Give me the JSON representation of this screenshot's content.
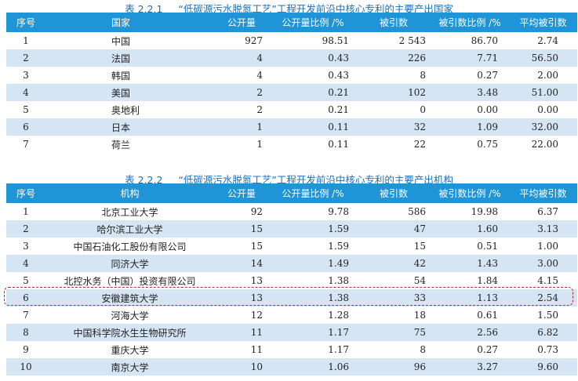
{
  "table1": {
    "number": "表 2.2.1",
    "caption": "“低碳源污水脱氮工艺”工程开发前沿中核心专利的主要产出国家",
    "headers": [
      "序号",
      "国家",
      "公开量",
      "公开量比例 /%",
      "被引数",
      "被引数比例 /%",
      "平均被引数"
    ],
    "rows": [
      [
        "1",
        "中国",
        "927",
        "98.51",
        "2 543",
        "86.70",
        "2.74"
      ],
      [
        "2",
        "法国",
        "4",
        "0.43",
        "226",
        "7.71",
        "56.50"
      ],
      [
        "3",
        "韩国",
        "4",
        "0.43",
        "8",
        "0.27",
        "2.00"
      ],
      [
        "4",
        "美国",
        "2",
        "0.21",
        "102",
        "3.48",
        "51.00"
      ],
      [
        "5",
        "奥地利",
        "2",
        "0.21",
        "0",
        "0.00",
        "0.00"
      ],
      [
        "6",
        "日本",
        "1",
        "0.11",
        "32",
        "1.09",
        "32.00"
      ],
      [
        "7",
        "荷兰",
        "1",
        "0.11",
        "22",
        "0.75",
        "22.00"
      ]
    ]
  },
  "table2": {
    "number": "表 2.2.2",
    "caption": "“低碳源污水脱氮工艺”工程开发前沿中核心专利的主要产出机构",
    "headers": [
      "序号",
      "机构",
      "公开量",
      "公开量比例 /%",
      "被引数",
      "被引数比例 /%",
      "平均被引数"
    ],
    "rows": [
      [
        "1",
        "北京工业大学",
        "92",
        "9.78",
        "586",
        "19.98",
        "6.37"
      ],
      [
        "2",
        "哈尔滨工业大学",
        "15",
        "1.59",
        "47",
        "1.60",
        "3.13"
      ],
      [
        "3",
        "中国石油化工股份有限公司",
        "15",
        "1.59",
        "15",
        "0.51",
        "1.00"
      ],
      [
        "4",
        "同济大学",
        "14",
        "1.49",
        "42",
        "1.43",
        "3.00"
      ],
      [
        "5",
        "北控水务（中国）投资有限公司",
        "13",
        "1.38",
        "54",
        "1.84",
        "4.15"
      ],
      [
        "6",
        "安徽建筑大学",
        "13",
        "1.38",
        "33",
        "1.13",
        "2.54"
      ],
      [
        "7",
        "河海大学",
        "12",
        "1.28",
        "18",
        "0.61",
        "1.50"
      ],
      [
        "8",
        "中国科学院水生生物研究所",
        "11",
        "1.17",
        "75",
        "2.56",
        "6.82"
      ],
      [
        "9",
        "重庆大学",
        "11",
        "1.17",
        "8",
        "0.27",
        "0.73"
      ],
      [
        "10",
        "南京大学",
        "10",
        "1.06",
        "96",
        "3.27",
        "9.60"
      ]
    ],
    "highlighted_row": 6
  }
}
